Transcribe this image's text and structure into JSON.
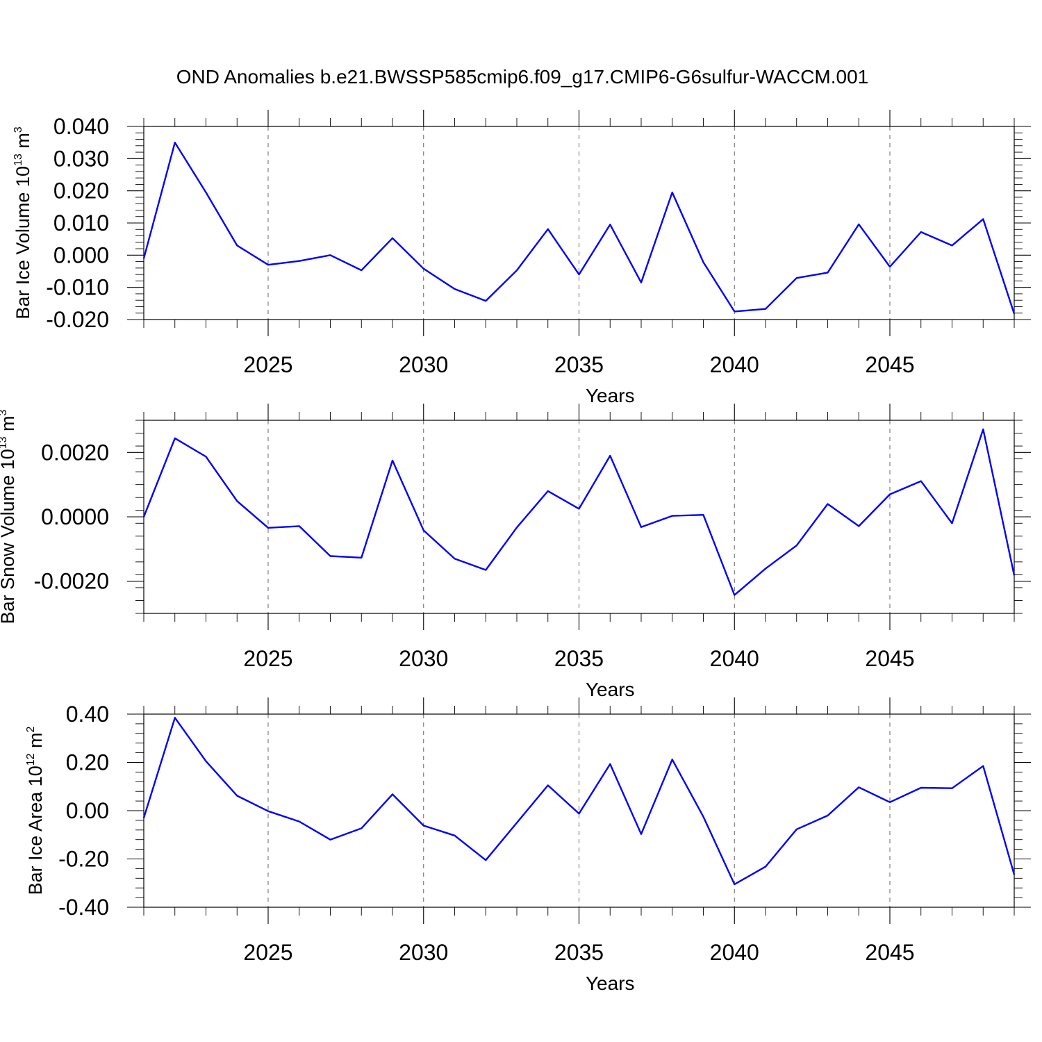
{
  "title": "OND Anomalies b.e21.BWSSP585cmip6.f09_g17.CMIP6-G6sulfur-WACCM.001",
  "colors": {
    "line": "#0000ff",
    "axis": "#000000",
    "grid": "#666666"
  },
  "chart_data": [
    {
      "type": "line",
      "title": "OND Anomalies b.e21.BWSSP585cmip6.f09_g17.CMIP6-G6sulfur-WACCM.001",
      "xlabel": "Years",
      "ylabel": {
        "prefix": "Bar Ice Volume 10",
        "exp1": "13",
        "unit": " m",
        "exp2": "3"
      },
      "xlim": [
        2021,
        2049
      ],
      "ylim": [
        -0.02,
        0.04
      ],
      "xticks": [
        2025,
        2030,
        2035,
        2040,
        2045
      ],
      "xtick_labels": [
        "2025",
        "2030",
        "2035",
        "2040",
        "2045"
      ],
      "yticks": [
        -0.02,
        -0.01,
        0.0,
        0.01,
        0.02,
        0.03,
        0.04
      ],
      "ytick_labels": [
        "-0.020",
        "-0.010",
        "0.000",
        "0.010",
        "0.020",
        "0.030",
        "0.040"
      ],
      "grid": "vertical dashed at major x ticks",
      "x": [
        2021,
        2022,
        2023,
        2024,
        2025,
        2026,
        2027,
        2028,
        2029,
        2030,
        2031,
        2032,
        2033,
        2034,
        2035,
        2036,
        2037,
        2038,
        2039,
        2040,
        2041,
        2042,
        2043,
        2044,
        2045,
        2046,
        2047,
        2048,
        2049
      ],
      "series": [
        {
          "values": [
            -0.001,
            0.035,
            0.0195,
            0.003,
            -0.003,
            -0.0018,
            0.0,
            -0.0047,
            0.0053,
            -0.0042,
            -0.0105,
            -0.0142,
            -0.0047,
            0.0081,
            -0.006,
            0.0095,
            -0.0085,
            0.0195,
            -0.0022,
            -0.0175,
            -0.0167,
            -0.0071,
            -0.0054,
            0.0096,
            -0.0036,
            0.0072,
            0.003,
            0.0112,
            -0.0182
          ]
        }
      ]
    },
    {
      "type": "line",
      "xlabel": "Years",
      "ylabel": {
        "prefix": "Bar Snow Volume 10",
        "exp1": "13",
        "unit": " m",
        "exp2": "3"
      },
      "xlim": [
        2021,
        2049
      ],
      "ylim": [
        -0.003,
        0.003
      ],
      "xticks": [
        2025,
        2030,
        2035,
        2040,
        2045
      ],
      "xtick_labels": [
        "2025",
        "2030",
        "2035",
        "2040",
        "2045"
      ],
      "yticks": [
        -0.002,
        0.0,
        0.002
      ],
      "ytick_labels": [
        "-0.0020",
        "0.0000",
        "0.0020"
      ],
      "grid": "vertical dashed at major x ticks",
      "x": [
        2021,
        2022,
        2023,
        2024,
        2025,
        2026,
        2027,
        2028,
        2029,
        2030,
        2031,
        2032,
        2033,
        2034,
        2035,
        2036,
        2037,
        2038,
        2039,
        2040,
        2041,
        2042,
        2043,
        2044,
        2045,
        2046,
        2047,
        2048,
        2049
      ],
      "series": [
        {
          "values": [
            0.0,
            0.00244,
            0.00187,
            0.00049,
            -0.00034,
            -0.00029,
            -0.00122,
            -0.00127,
            0.00175,
            -0.00042,
            -0.0013,
            -0.00165,
            -0.00033,
            0.0008,
            0.00025,
            0.0019,
            -0.00032,
            3e-05,
            6e-05,
            -0.00243,
            -0.00161,
            -0.00089,
            0.0004,
            -0.00029,
            0.0007,
            0.00111,
            -0.0002,
            0.00272,
            -0.00182
          ]
        }
      ]
    },
    {
      "type": "line",
      "xlabel": "Years",
      "ylabel": {
        "prefix": "Bar Ice Area 10",
        "exp1": "12",
        "unit": " m",
        "exp2": "2"
      },
      "xlim": [
        2021,
        2049
      ],
      "ylim": [
        -0.4,
        0.4
      ],
      "xticks": [
        2025,
        2030,
        2035,
        2040,
        2045
      ],
      "xtick_labels": [
        "2025",
        "2030",
        "2035",
        "2040",
        "2045"
      ],
      "yticks": [
        -0.4,
        -0.2,
        0.0,
        0.2,
        0.4
      ],
      "ytick_labels": [
        "-0.40",
        "-0.20",
        "0.00",
        "0.20",
        "0.40"
      ],
      "grid": "vertical dashed at major x ticks",
      "x": [
        2021,
        2022,
        2023,
        2024,
        2025,
        2026,
        2027,
        2028,
        2029,
        2030,
        2031,
        2032,
        2033,
        2034,
        2035,
        2036,
        2037,
        2038,
        2039,
        2040,
        2041,
        2042,
        2043,
        2044,
        2045,
        2046,
        2047,
        2048,
        2049
      ],
      "series": [
        {
          "values": [
            -0.03,
            0.385,
            0.205,
            0.062,
            -0.002,
            -0.045,
            -0.12,
            -0.073,
            0.068,
            -0.062,
            -0.103,
            -0.205,
            -0.05,
            0.105,
            -0.012,
            0.193,
            -0.097,
            0.212,
            -0.025,
            -0.305,
            -0.232,
            -0.077,
            -0.02,
            0.097,
            0.035,
            0.095,
            0.093,
            0.185,
            -0.265
          ]
        }
      ]
    }
  ]
}
